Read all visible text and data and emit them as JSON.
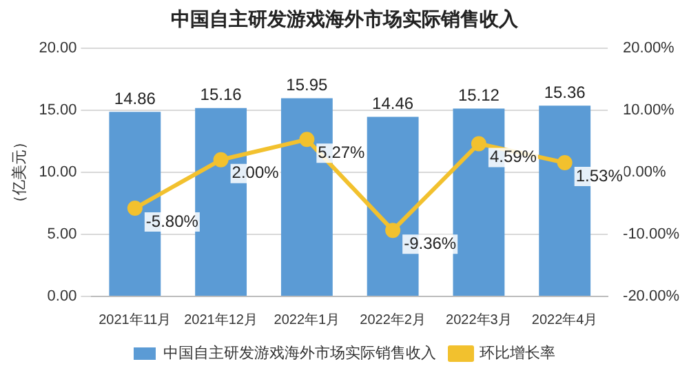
{
  "chart_data": {
    "type": "bar",
    "title": "中国自主研发游戏海外市场实际销售收入",
    "ylabel": "（亿美元）",
    "categories": [
      "2021年11月",
      "2021年12月",
      "2022年1月",
      "2022年2月",
      "2022年3月",
      "2022年4月"
    ],
    "series": [
      {
        "name": "中国自主研发游戏海外市场实际销售收入",
        "color": "#5b9bd5",
        "values": [
          14.86,
          15.16,
          15.95,
          14.46,
          15.12,
          15.36
        ],
        "value_labels": [
          "14.86",
          "15.16",
          "15.95",
          "14.46",
          "15.12",
          "15.36"
        ]
      },
      {
        "name": "环比增长率",
        "type": "line",
        "axis": "y2",
        "color": "#f2c12e",
        "values": [
          -5.8,
          2.0,
          5.27,
          -9.36,
          4.59,
          1.53
        ],
        "value_labels": [
          "-5.80%",
          "2.00%",
          "5.27%",
          "-9.36%",
          "4.59%",
          "1.53%"
        ]
      }
    ],
    "ylim": [
      0,
      20
    ],
    "yticks": [
      {
        "value": 0,
        "label": "0.00"
      },
      {
        "value": 5,
        "label": "5.00"
      },
      {
        "value": 10,
        "label": "10.00"
      },
      {
        "value": 15,
        "label": "15.00"
      },
      {
        "value": 20,
        "label": "20.00"
      }
    ],
    "y2lim": [
      -20,
      20
    ],
    "y2ticks": [
      {
        "value": -20,
        "label": "-20.00%"
      },
      {
        "value": -10,
        "label": "-10.00%"
      },
      {
        "value": 0,
        "label": "0.00%"
      },
      {
        "value": 10,
        "label": "10.00%"
      },
      {
        "value": 20,
        "label": "20.00%"
      }
    ],
    "grid": "y",
    "legend": "bottom",
    "marker": "circle"
  }
}
